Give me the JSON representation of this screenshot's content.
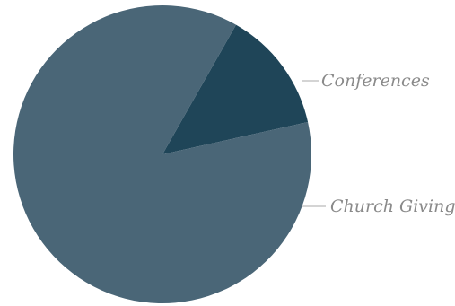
{
  "chart_data": {
    "type": "pie",
    "title": "",
    "start_angle_deg": 29.6,
    "direction": "clockwise",
    "slices": [
      {
        "label": "Conferences",
        "value": 13.3,
        "color": "#1f4558"
      },
      {
        "label": "Church Giving",
        "value": 86.7,
        "color": "#4a6677"
      }
    ],
    "colors": {
      "background": "#ffffff",
      "label_text": "#8a8a8a",
      "leader_line": "#a8a8a8"
    }
  }
}
